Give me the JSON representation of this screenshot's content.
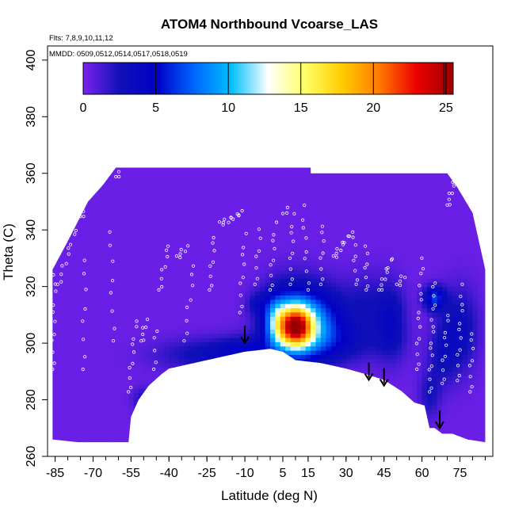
{
  "chart_data": {
    "type": "heatmap",
    "title": "ATOM4 Northbound Vcoarse_LAS",
    "notes": {
      "flights": "Flts: 7,8,9,10,11,12",
      "dates": "MMDD: 0509,0512,0514,0517,0518,0519"
    },
    "xlabel": "Latitude (deg N)",
    "ylabel": "Theta (C)",
    "xlim": [
      -88,
      88
    ],
    "ylim": [
      260,
      405
    ],
    "x_ticks": [
      -85,
      -70,
      -55,
      -40,
      -25,
      -10,
      5,
      15,
      30,
      45,
      60,
      75
    ],
    "x_minor_step": 5,
    "y_ticks": [
      260,
      280,
      300,
      320,
      340,
      360,
      380,
      400
    ],
    "colorbar": {
      "ticks": [
        0,
        5,
        10,
        15,
        20,
        25
      ],
      "range": [
        0,
        25.5
      ],
      "colors": [
        "#7b22ee",
        "#1010b8",
        "#0000c8",
        "#0066ff",
        "#00bfff",
        "#ffffff",
        "#ffff66",
        "#ffcc00",
        "#ff7a00",
        "#ee0000",
        "#9b0000"
      ]
    },
    "field": {
      "background_value": 0.4,
      "lower_boundary": [
        [
          -86,
          266
        ],
        [
          -76,
          265
        ],
        [
          -62,
          265
        ],
        [
          -56,
          265
        ],
        [
          -55,
          274
        ],
        [
          -52,
          280
        ],
        [
          -48,
          285
        ],
        [
          -43,
          289
        ],
        [
          -40,
          291
        ],
        [
          -30,
          293
        ],
        [
          -20,
          295
        ],
        [
          -10,
          297
        ],
        [
          0,
          298
        ],
        [
          5,
          297
        ],
        [
          10,
          294
        ],
        [
          20,
          293
        ],
        [
          30,
          291
        ],
        [
          38,
          289
        ],
        [
          45,
          287
        ],
        [
          52,
          283
        ],
        [
          57,
          279
        ],
        [
          61,
          278
        ],
        [
          63,
          270
        ],
        [
          65,
          270
        ],
        [
          68,
          268
        ],
        [
          72,
          268
        ],
        [
          78,
          266
        ],
        [
          85,
          265
        ]
      ],
      "upper_boundary": [
        [
          -86,
          326
        ],
        [
          -80,
          336
        ],
        [
          -72,
          350
        ],
        [
          -66,
          356
        ],
        [
          -61,
          362
        ],
        [
          16,
          362
        ],
        [
          16,
          360
        ],
        [
          70,
          360
        ],
        [
          74,
          355
        ],
        [
          80,
          346
        ],
        [
          85,
          326
        ]
      ],
      "hotspots": [
        {
          "lat": -25,
          "theta": 296,
          "value": 2.5,
          "sx": 14,
          "sy": 4
        },
        {
          "lat": -10,
          "theta": 298,
          "value": 2.5,
          "sx": 8,
          "sy": 3
        },
        {
          "lat": 22,
          "theta": 300,
          "value": 2.5,
          "sx": 16,
          "sy": 5
        },
        {
          "lat": -50,
          "theta": 280,
          "value": 2.2,
          "sx": 3,
          "sy": 3
        },
        {
          "lat": -5,
          "theta": 314,
          "value": 2.0,
          "sx": 3,
          "sy": 3
        },
        {
          "lat": 2,
          "theta": 309,
          "value": 4,
          "sx": 3,
          "sy": 6
        },
        {
          "lat": 10,
          "theta": 306,
          "value": 18,
          "sx": 5,
          "sy": 5
        },
        {
          "lat": 10,
          "theta": 308,
          "value": 8,
          "sx": 8,
          "sy": 9
        },
        {
          "lat": 23,
          "theta": 308,
          "value": 3.5,
          "sx": 6,
          "sy": 8
        },
        {
          "lat": 38,
          "theta": 313,
          "value": 2.0,
          "sx": 6,
          "sy": 8
        },
        {
          "lat": 48,
          "theta": 308,
          "value": 3.0,
          "sx": 4,
          "sy": 9
        },
        {
          "lat": 65,
          "theta": 316,
          "value": 6,
          "sx": 3,
          "sy": 3
        },
        {
          "lat": 75,
          "theta": 305,
          "value": 3.0,
          "sx": 5,
          "sy": 10
        },
        {
          "lat": 63,
          "theta": 282,
          "value": 2.0,
          "sx": 3,
          "sy": 6
        },
        {
          "lat": 68,
          "theta": 296,
          "value": 2.0,
          "sx": 4,
          "sy": 8
        }
      ]
    },
    "arrows": [
      {
        "lat": -10,
        "theta": 300
      },
      {
        "lat": 39,
        "theta": 287
      },
      {
        "lat": 45,
        "theta": 285
      },
      {
        "lat": 67,
        "theta": 270
      }
    ],
    "flight_tracks": [
      {
        "start": [
          -86,
          290
        ],
        "end": [
          -85,
          328
        ],
        "n": 12
      },
      {
        "start": [
          -84,
          320
        ],
        "end": [
          -77,
          340
        ],
        "n": 10
      },
      {
        "start": [
          -75,
          344
        ],
        "end": [
          -73,
          348
        ],
        "n": 4
      },
      {
        "start": [
          -74,
          290
        ],
        "end": [
          -73,
          330
        ],
        "n": 8
      },
      {
        "start": [
          -62,
          300
        ],
        "end": [
          -63,
          340
        ],
        "n": 8
      },
      {
        "start": [
          -61,
          358
        ],
        "end": [
          -59,
          362
        ],
        "n": 4
      },
      {
        "start": [
          -56,
          282
        ],
        "end": [
          -53,
          308
        ],
        "n": 10
      },
      {
        "start": [
          -51,
          300
        ],
        "end": [
          -49,
          308
        ],
        "n": 6
      },
      {
        "start": [
          -46,
          290
        ],
        "end": [
          -45,
          305
        ],
        "n": 5
      },
      {
        "start": [
          -44,
          318
        ],
        "end": [
          -40,
          335
        ],
        "n": 8
      },
      {
        "start": [
          -37,
          330
        ],
        "end": [
          -33,
          334
        ],
        "n": 6
      },
      {
        "start": [
          -34,
          300
        ],
        "end": [
          -30,
          328
        ],
        "n": 8
      },
      {
        "start": [
          -24,
          318
        ],
        "end": [
          -22,
          338
        ],
        "n": 8
      },
      {
        "start": [
          -20,
          342
        ],
        "end": [
          -11,
          346
        ],
        "n": 12
      },
      {
        "start": [
          -12,
          310
        ],
        "end": [
          -10,
          338
        ],
        "n": 9
      },
      {
        "start": [
          -6,
          320
        ],
        "end": [
          -4,
          340
        ],
        "n": 7
      },
      {
        "start": [
          0,
          318
        ],
        "end": [
          2,
          342
        ],
        "n": 9
      },
      {
        "start": [
          5,
          345
        ],
        "end": [
          7,
          348
        ],
        "n": 3
      },
      {
        "start": [
          8,
          320
        ],
        "end": [
          9,
          345
        ],
        "n": 9
      },
      {
        "start": [
          15,
          318
        ],
        "end": [
          13,
          348
        ],
        "n": 9
      },
      {
        "start": [
          20,
          320
        ],
        "end": [
          21,
          342
        ],
        "n": 8
      },
      {
        "start": [
          25,
          330
        ],
        "end": [
          31,
          338
        ],
        "n": 10
      },
      {
        "start": [
          34,
          320
        ],
        "end": [
          33,
          340
        ],
        "n": 8
      },
      {
        "start": [
          38,
          318
        ],
        "end": [
          38,
          334
        ],
        "n": 7
      },
      {
        "start": [
          43,
          318
        ],
        "end": [
          48,
          330
        ],
        "n": 10
      },
      {
        "start": [
          50,
          320
        ],
        "end": [
          53,
          324
        ],
        "n": 5
      },
      {
        "start": [
          58,
          290
        ],
        "end": [
          60,
          330
        ],
        "n": 14
      },
      {
        "start": [
          63,
          282
        ],
        "end": [
          65,
          322
        ],
        "n": 16
      },
      {
        "start": [
          68,
          285
        ],
        "end": [
          70,
          310
        ],
        "n": 10
      },
      {
        "start": [
          70,
          348
        ],
        "end": [
          73,
          358
        ],
        "n": 8
      },
      {
        "start": [
          74,
          286
        ],
        "end": [
          76,
          320
        ],
        "n": 12
      },
      {
        "start": [
          79,
          282
        ],
        "end": [
          80,
          304
        ],
        "n": 8
      }
    ]
  }
}
